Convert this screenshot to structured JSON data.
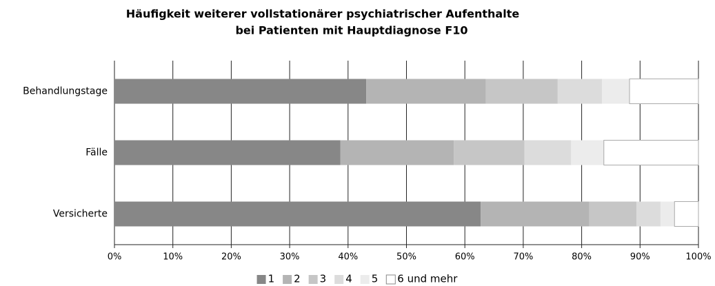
{
  "chart_data": {
    "type": "stacked_barh",
    "title": [
      "Häufigkeit weiterer vollstationärer psychiatrischer Aufenthalte",
      "bei Patienten mit Hauptdiagnose F10"
    ],
    "categories": [
      "Behandlungstage",
      "Fälle",
      "Versicherte"
    ],
    "series": [
      {
        "name": "1",
        "color": "#878787",
        "values": [
          43.1,
          38.7,
          62.7
        ]
      },
      {
        "name": "2",
        "color": "#b4b4b4",
        "values": [
          20.5,
          19.4,
          18.6
        ]
      },
      {
        "name": "3",
        "color": "#c6c6c6",
        "values": [
          12.3,
          12.1,
          8.1
        ]
      },
      {
        "name": "4",
        "color": "#dcdcdc",
        "values": [
          7.6,
          8.0,
          4.1
        ]
      },
      {
        "name": "5",
        "color": "#ececec",
        "values": [
          4.7,
          5.6,
          2.4
        ]
      },
      {
        "name": "6 und mehr",
        "color": "#ffffff",
        "values": [
          11.8,
          16.2,
          4.1
        ]
      }
    ],
    "xlim": [
      0,
      100
    ],
    "xticks": [
      {
        "value": 0,
        "label": "0%"
      },
      {
        "value": 10,
        "label": "10%"
      },
      {
        "value": 20,
        "label": "20%"
      },
      {
        "value": 30,
        "label": "30%"
      },
      {
        "value": 40,
        "label": "40%"
      },
      {
        "value": 50,
        "label": "50%"
      },
      {
        "value": 60,
        "label": "60%"
      },
      {
        "value": 70,
        "label": "70%"
      },
      {
        "value": 80,
        "label": "80%"
      },
      {
        "value": 90,
        "label": "90%"
      },
      {
        "value": 100,
        "label": "100%"
      }
    ],
    "grid": true,
    "legend": "bottom"
  }
}
